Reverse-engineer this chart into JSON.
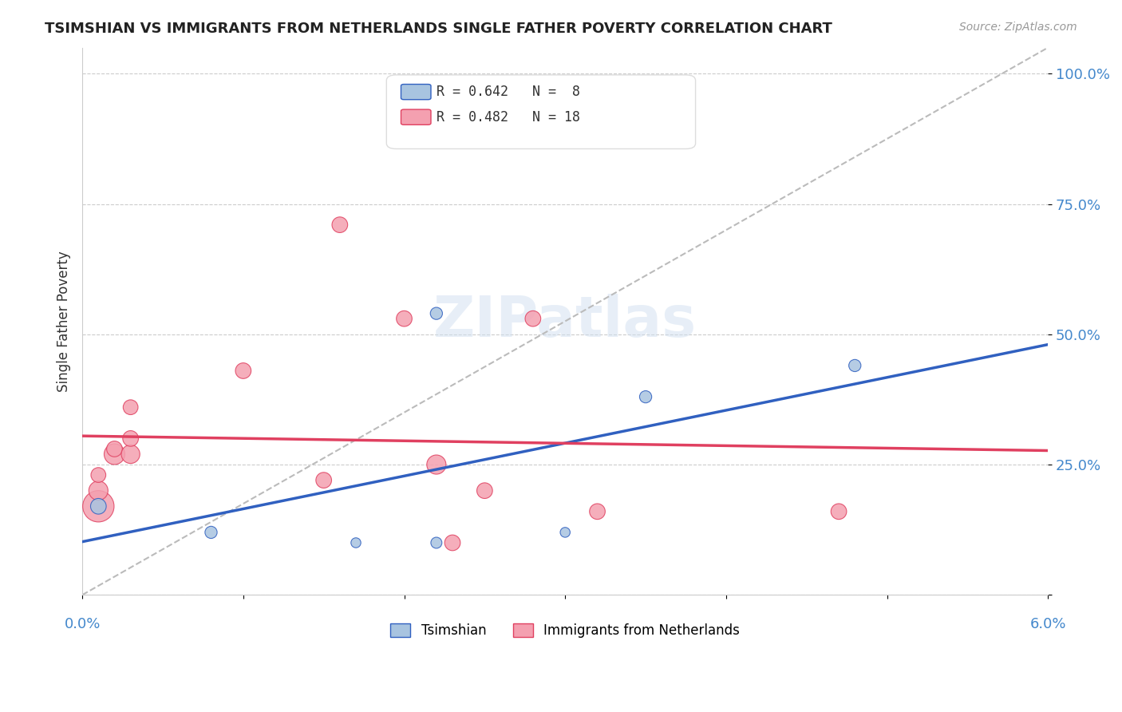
{
  "title": "TSIMSHIAN VS IMMIGRANTS FROM NETHERLANDS SINGLE FATHER POVERTY CORRELATION CHART",
  "source": "Source: ZipAtlas.com",
  "ylabel": "Single Father Poverty",
  "xlim": [
    0.0,
    0.06
  ],
  "ylim": [
    0.0,
    1.05
  ],
  "legend_tsimshian": "Tsimshian",
  "legend_netherlands": "Immigrants from Netherlands",
  "r_tsimshian": 0.642,
  "n_tsimshian": 8,
  "r_netherlands": 0.482,
  "n_netherlands": 18,
  "tsimshian_color": "#a8c4e0",
  "netherlands_color": "#f4a0b0",
  "tsimshian_line_color": "#3060c0",
  "netherlands_line_color": "#e04060",
  "watermark": "ZIPatlas",
  "tsimshian_x": [
    0.001,
    0.008,
    0.017,
    0.022,
    0.022,
    0.03,
    0.035,
    0.048
  ],
  "tsimshian_y": [
    0.17,
    0.12,
    0.1,
    0.54,
    0.1,
    0.12,
    0.38,
    0.44
  ],
  "tsimshian_sizes": [
    200,
    120,
    80,
    120,
    100,
    80,
    120,
    120
  ],
  "netherlands_x": [
    0.001,
    0.001,
    0.001,
    0.002,
    0.002,
    0.003,
    0.003,
    0.003,
    0.01,
    0.015,
    0.016,
    0.02,
    0.022,
    0.023,
    0.025,
    0.028,
    0.032,
    0.047
  ],
  "netherlands_y": [
    0.17,
    0.2,
    0.23,
    0.27,
    0.28,
    0.27,
    0.3,
    0.36,
    0.43,
    0.22,
    0.71,
    0.53,
    0.25,
    0.1,
    0.2,
    0.53,
    0.16,
    0.16
  ],
  "netherlands_sizes": [
    800,
    300,
    180,
    350,
    200,
    280,
    200,
    180,
    200,
    200,
    200,
    200,
    300,
    200,
    200,
    200,
    200,
    200
  ],
  "background_color": "#ffffff",
  "grid_color": "#cccccc"
}
